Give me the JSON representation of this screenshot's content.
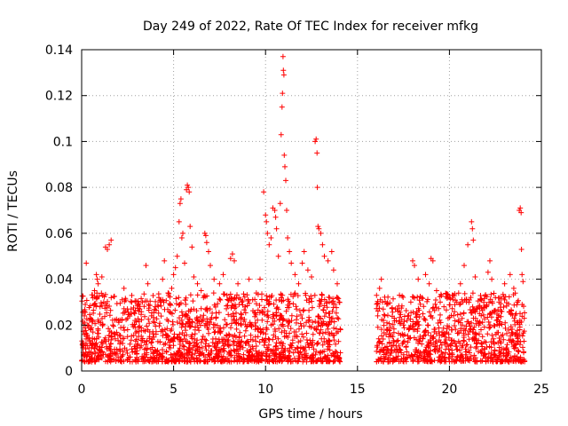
{
  "chart_data": {
    "type": "scatter",
    "title": "Day 249 of 2022, Rate Of TEC Index for receiver mfkg",
    "xlabel": "GPS time / hours",
    "ylabel": "ROTI / TECUs",
    "xlim": [
      0,
      25
    ],
    "ylim": [
      0,
      0.14
    ],
    "xticks": [
      0,
      5,
      10,
      15,
      20,
      25
    ],
    "xtick_labels": [
      "0",
      "5",
      "10",
      "15",
      "20",
      "25"
    ],
    "yticks": [
      0,
      0.02,
      0.04,
      0.06,
      0.08,
      0.1,
      0.12,
      0.14
    ],
    "ytick_labels": [
      "0",
      "0.02",
      "0.04",
      "0.06",
      "0.08",
      "0.1",
      "0.12",
      "0.14"
    ],
    "grid": true,
    "marker": "+",
    "color": "#ff0000",
    "gap_hours": [
      14.1,
      16.0
    ],
    "series": [
      {
        "name": "ROTI",
        "points": [
          [
            0.05,
            0.012
          ],
          [
            0.15,
            0.024
          ],
          [
            0.2,
            0.029
          ],
          [
            0.25,
            0.047
          ],
          [
            0.3,
            0.015
          ],
          [
            0.4,
            0.01
          ],
          [
            0.5,
            0.018
          ],
          [
            0.6,
            0.022
          ],
          [
            0.7,
            0.035
          ],
          [
            0.8,
            0.042
          ],
          [
            0.85,
            0.04
          ],
          [
            0.9,
            0.038
          ],
          [
            1.0,
            0.028
          ],
          [
            1.1,
            0.041
          ],
          [
            1.2,
            0.03
          ],
          [
            1.3,
            0.054
          ],
          [
            1.4,
            0.053
          ],
          [
            1.5,
            0.055
          ],
          [
            1.6,
            0.057
          ],
          [
            1.7,
            0.02
          ],
          [
            1.8,
            0.016
          ],
          [
            2.0,
            0.022
          ],
          [
            2.2,
            0.031
          ],
          [
            2.3,
            0.036
          ],
          [
            2.5,
            0.018
          ],
          [
            2.7,
            0.025
          ],
          [
            2.9,
            0.022
          ],
          [
            3.1,
            0.019
          ],
          [
            3.3,
            0.03
          ],
          [
            3.5,
            0.046
          ],
          [
            3.6,
            0.038
          ],
          [
            3.8,
            0.024
          ],
          [
            4.0,
            0.028
          ],
          [
            4.2,
            0.032
          ],
          [
            4.4,
            0.04
          ],
          [
            4.5,
            0.048
          ],
          [
            4.7,
            0.034
          ],
          [
            4.9,
            0.036
          ],
          [
            5.0,
            0.042
          ],
          [
            5.1,
            0.045
          ],
          [
            5.2,
            0.05
          ],
          [
            5.3,
            0.065
          ],
          [
            5.35,
            0.073
          ],
          [
            5.4,
            0.075
          ],
          [
            5.45,
            0.058
          ],
          [
            5.5,
            0.06
          ],
          [
            5.6,
            0.047
          ],
          [
            5.7,
            0.079
          ],
          [
            5.75,
            0.081
          ],
          [
            5.8,
            0.08
          ],
          [
            5.85,
            0.078
          ],
          [
            5.9,
            0.063
          ],
          [
            6.0,
            0.054
          ],
          [
            6.1,
            0.041
          ],
          [
            6.3,
            0.038
          ],
          [
            6.5,
            0.035
          ],
          [
            6.7,
            0.06
          ],
          [
            6.75,
            0.059
          ],
          [
            6.8,
            0.056
          ],
          [
            6.9,
            0.052
          ],
          [
            7.0,
            0.046
          ],
          [
            7.2,
            0.04
          ],
          [
            7.5,
            0.038
          ],
          [
            7.7,
            0.042
          ],
          [
            7.9,
            0.033
          ],
          [
            8.1,
            0.049
          ],
          [
            8.2,
            0.051
          ],
          [
            8.3,
            0.048
          ],
          [
            8.5,
            0.038
          ],
          [
            8.7,
            0.03
          ],
          [
            8.9,
            0.028
          ],
          [
            9.1,
            0.04
          ],
          [
            9.3,
            0.031
          ],
          [
            9.5,
            0.034
          ],
          [
            9.7,
            0.04
          ],
          [
            9.8,
            0.026
          ],
          [
            9.9,
            0.078
          ],
          [
            10.0,
            0.068
          ],
          [
            10.05,
            0.065
          ],
          [
            10.1,
            0.06
          ],
          [
            10.2,
            0.055
          ],
          [
            10.3,
            0.058
          ],
          [
            10.4,
            0.071
          ],
          [
            10.5,
            0.07
          ],
          [
            10.55,
            0.067
          ],
          [
            10.6,
            0.062
          ],
          [
            10.7,
            0.05
          ],
          [
            10.8,
            0.073
          ],
          [
            10.85,
            0.103
          ],
          [
            10.9,
            0.115
          ],
          [
            10.92,
            0.121
          ],
          [
            10.95,
            0.137
          ],
          [
            10.97,
            0.131
          ],
          [
            11.0,
            0.129
          ],
          [
            11.02,
            0.094
          ],
          [
            11.05,
            0.089
          ],
          [
            11.1,
            0.083
          ],
          [
            11.15,
            0.07
          ],
          [
            11.2,
            0.058
          ],
          [
            11.3,
            0.052
          ],
          [
            11.4,
            0.047
          ],
          [
            11.6,
            0.042
          ],
          [
            11.8,
            0.038
          ],
          [
            12.0,
            0.047
          ],
          [
            12.1,
            0.052
          ],
          [
            12.3,
            0.044
          ],
          [
            12.5,
            0.041
          ],
          [
            12.7,
            0.1
          ],
          [
            12.75,
            0.101
          ],
          [
            12.8,
            0.095
          ],
          [
            12.82,
            0.08
          ],
          [
            12.85,
            0.063
          ],
          [
            12.9,
            0.062
          ],
          [
            13.0,
            0.06
          ],
          [
            13.1,
            0.055
          ],
          [
            13.2,
            0.05
          ],
          [
            13.4,
            0.048
          ],
          [
            13.6,
            0.052
          ],
          [
            13.7,
            0.044
          ],
          [
            13.9,
            0.038
          ],
          [
            14.0,
            0.03
          ],
          [
            16.1,
            0.024
          ],
          [
            16.2,
            0.036
          ],
          [
            16.3,
            0.04
          ],
          [
            16.4,
            0.027
          ],
          [
            16.6,
            0.021
          ],
          [
            16.8,
            0.019
          ],
          [
            17.0,
            0.023
          ],
          [
            17.2,
            0.026
          ],
          [
            17.5,
            0.02
          ],
          [
            17.7,
            0.022
          ],
          [
            17.9,
            0.03
          ],
          [
            18.0,
            0.048
          ],
          [
            18.1,
            0.046
          ],
          [
            18.3,
            0.04
          ],
          [
            18.5,
            0.032
          ],
          [
            18.7,
            0.042
          ],
          [
            18.9,
            0.038
          ],
          [
            19.0,
            0.049
          ],
          [
            19.1,
            0.048
          ],
          [
            19.3,
            0.035
          ],
          [
            19.5,
            0.03
          ],
          [
            19.7,
            0.028
          ],
          [
            20.0,
            0.032
          ],
          [
            20.2,
            0.033
          ],
          [
            20.4,
            0.03
          ],
          [
            20.6,
            0.038
          ],
          [
            20.8,
            0.046
          ],
          [
            21.0,
            0.055
          ],
          [
            21.2,
            0.065
          ],
          [
            21.25,
            0.062
          ],
          [
            21.3,
            0.057
          ],
          [
            21.4,
            0.041
          ],
          [
            21.6,
            0.02
          ],
          [
            21.8,
            0.015
          ],
          [
            22.0,
            0.028
          ],
          [
            22.1,
            0.043
          ],
          [
            22.2,
            0.048
          ],
          [
            22.3,
            0.04
          ],
          [
            22.5,
            0.032
          ],
          [
            22.7,
            0.03
          ],
          [
            23.0,
            0.038
          ],
          [
            23.3,
            0.042
          ],
          [
            23.5,
            0.036
          ],
          [
            23.7,
            0.03
          ],
          [
            23.8,
            0.07
          ],
          [
            23.85,
            0.071
          ],
          [
            23.9,
            0.069
          ],
          [
            23.92,
            0.053
          ],
          [
            23.95,
            0.042
          ],
          [
            24.0,
            0.039
          ]
        ]
      }
    ]
  }
}
